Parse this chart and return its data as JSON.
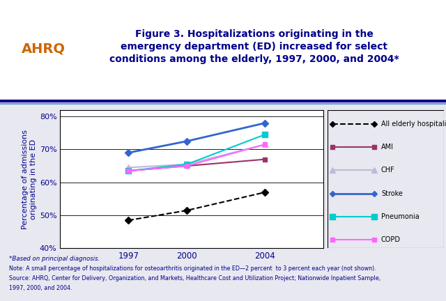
{
  "years": [
    1997,
    2000,
    2004
  ],
  "series": {
    "All elderly hospitalizations": {
      "values": [
        48.5,
        51.5,
        57.0
      ],
      "color": "#000000",
      "linestyle": "dashed",
      "marker": "D",
      "markersize": 5,
      "linewidth": 1.5
    },
    "AMI": {
      "values": [
        63.5,
        65.0,
        67.0
      ],
      "color": "#993366",
      "linestyle": "solid",
      "marker": "s",
      "markersize": 5,
      "linewidth": 1.5
    },
    "CHF": {
      "values": [
        64.5,
        65.5,
        71.5
      ],
      "color": "#BBBBDD",
      "linestyle": "solid",
      "marker": "^",
      "markersize": 6,
      "linewidth": 1.5
    },
    "Stroke": {
      "values": [
        69.0,
        72.5,
        78.0
      ],
      "color": "#3366CC",
      "linestyle": "solid",
      "marker": "D",
      "markersize": 5,
      "linewidth": 2.0
    },
    "Pneumonia": {
      "values": [
        63.5,
        65.5,
        74.5
      ],
      "color": "#00CCCC",
      "linestyle": "solid",
      "marker": "s",
      "markersize": 6,
      "linewidth": 1.5
    },
    "COPD": {
      "values": [
        63.5,
        65.0,
        71.5
      ],
      "color": "#FF66FF",
      "linestyle": "solid",
      "marker": "s",
      "markersize": 5,
      "linewidth": 1.5
    }
  },
  "title_line1": "Figure 3. Hospitalizations originating in the",
  "title_line2": "emergency department (ED) increased for select",
  "title_line3": "conditions among the elderly, 1997, 2000, and 2004*",
  "ylabel": "Percentage of admissions\noriginating in the ED",
  "ylim": [
    40,
    82
  ],
  "yticks": [
    40,
    50,
    60,
    70,
    80
  ],
  "ytick_labels": [
    "40%",
    "50%",
    "60%",
    "70%",
    "80%"
  ],
  "outer_bg_color": "#FFFFFF",
  "inner_bg_color": "#E8E8F0",
  "plot_bg_color": "#FFFFFF",
  "note_line1": "*Based on principal diagnosis.",
  "note_line2": "Note: A small percentage of hospitalizations for osteoarthritis originated in the ED—2 percent  to 3 percent each year (not shown).",
  "note_line3": "Source: AHRQ, Center for Delivery, Organization, and Markets, Healthcare Cost and Utilization Project; Nationwide Inpatient Sample,",
  "note_line4": "1997, 2000, and 2004.",
  "title_color": "#00008B",
  "title_fontsize": 10,
  "axis_label_color": "#00008B",
  "tick_color": "#00008B",
  "note_color": "#00008B",
  "sep_line_color1": "#00008B",
  "sep_line_color2": "#6699CC",
  "legend_order": [
    "All elderly hospitalizations",
    "AMI",
    "CHF",
    "Stroke",
    "Pneumonia",
    "COPD"
  ]
}
